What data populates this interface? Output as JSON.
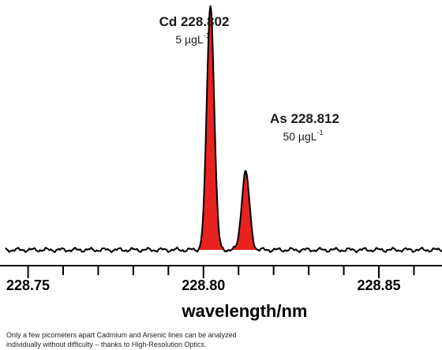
{
  "chart_data": {
    "type": "line",
    "title": "",
    "xlabel": "wavelength/nm",
    "ylabel": "",
    "xlim": [
      228.742,
      228.868
    ],
    "ylim": [
      -0.02,
      1.0
    ],
    "x_ticks": [
      228.75,
      228.8,
      228.85
    ],
    "x_tick_labels": [
      "228.75",
      "228.80",
      "228.85"
    ],
    "grid": false,
    "fill_color": "#e8231f",
    "line_color": "#000000",
    "baseline_noise_amplitude": 0.01,
    "peaks": [
      {
        "element": "Cd",
        "wavelength": 228.802,
        "label": "Cd 228.802",
        "concentration_value": "5 µgL",
        "concentration_exp": "-1",
        "height": 1.0,
        "fwhm": 0.0025
      },
      {
        "element": "As",
        "wavelength": 228.812,
        "label": "As 228.812",
        "concentration_value": "50 µgL",
        "concentration_exp": "-1",
        "height": 0.32,
        "fwhm": 0.0026
      }
    ]
  },
  "caption": {
    "line1": "Only a few picometers apart Cadmium and Arsenic lines can be analyzed",
    "line2": "individually without difficulty – thanks to High-Resolution Optics."
  }
}
